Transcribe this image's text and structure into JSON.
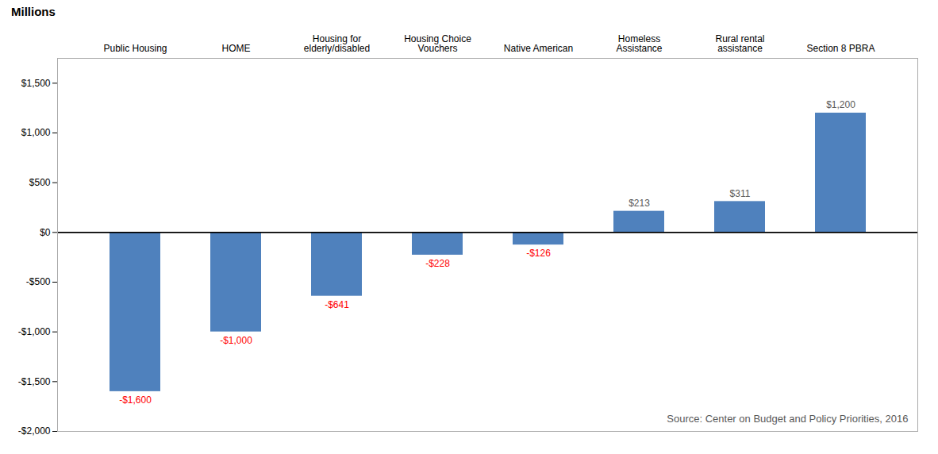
{
  "chart_data": {
    "type": "bar",
    "categories": [
      "Public Housing",
      "HOME",
      "Housing for\nelderly/disabled",
      "Housing Choice\nVouchers",
      "Native American",
      "Homeless\nAssistance",
      "Rural rental\nassistance",
      "Section 8 PBRA"
    ],
    "values": [
      -1600,
      -1000,
      -641,
      -228,
      -126,
      213,
      311,
      1200
    ],
    "value_labels": [
      "-$1,600",
      "-$1,000",
      "-$641",
      "-$228",
      "-$126",
      "$213",
      "$311",
      "$1,200"
    ],
    "data_labels": true,
    "color": "#4F81BD",
    "ylabel": "Millions",
    "ylim": [
      -2000,
      1750
    ],
    "yticks": [
      {
        "value": -2000,
        "label": "-$2,000"
      },
      {
        "value": -1500,
        "label": "-$1,500"
      },
      {
        "value": -1000,
        "label": "-$1,000"
      },
      {
        "value": -500,
        "label": "-$500"
      },
      {
        "value": 0,
        "label": "$0"
      },
      {
        "value": 500,
        "label": "$500"
      },
      {
        "value": 1000,
        "label": "$1,000"
      },
      {
        "value": 1500,
        "label": "$1,500"
      }
    ],
    "grid": false,
    "annotations": [
      "Source: Center on Budget and Policy Priorities, 2016"
    ]
  }
}
